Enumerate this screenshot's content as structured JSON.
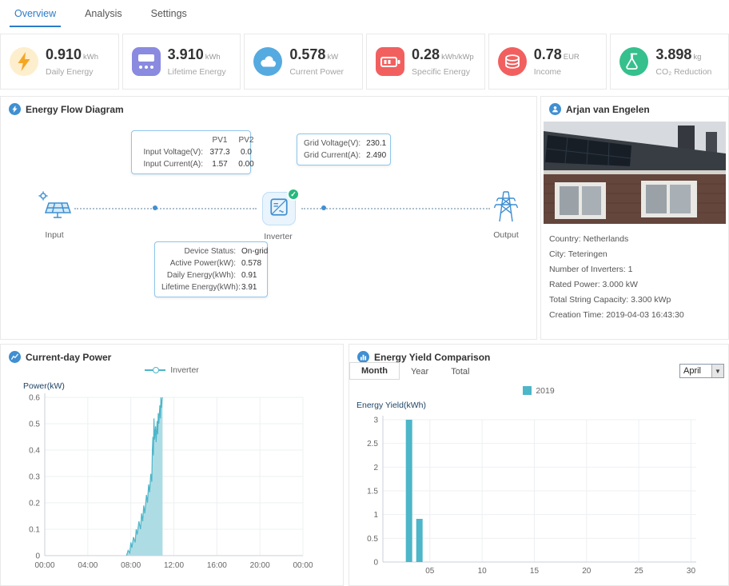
{
  "nav": {
    "tabs": [
      {
        "label": "Overview",
        "active": true
      },
      {
        "label": "Analysis",
        "active": false
      },
      {
        "label": "Settings",
        "active": false
      }
    ]
  },
  "kpis": [
    {
      "icon": "lightning-icon",
      "value": "0.910",
      "unit": "kWh",
      "label": "Daily Energy"
    },
    {
      "icon": "meter-icon",
      "value": "3.910",
      "unit": "kWh",
      "label": "Lifetime Energy"
    },
    {
      "icon": "cloud-icon",
      "value": "0.578",
      "unit": "kW",
      "label": "Current Power"
    },
    {
      "icon": "battery-icon",
      "value": "0.28",
      "unit": "kWh/kWp",
      "label": "Specific Energy"
    },
    {
      "icon": "coins-icon",
      "value": "0.78",
      "unit": "EUR",
      "label": "Income"
    },
    {
      "icon": "flask-icon",
      "value": "3.898",
      "unit": "kg",
      "label": "CO₂ Reduction"
    }
  ],
  "flow": {
    "title": "Energy Flow Diagram",
    "nodes": {
      "input": "Input",
      "inverter": "Inverter",
      "output": "Output"
    },
    "pv_tooltip": {
      "col1": "PV1",
      "col2": "PV2",
      "rows": [
        {
          "label": "Input Voltage(V):",
          "v1": "377.3",
          "v2": "0.0"
        },
        {
          "label": "Input Current(A):",
          "v1": "1.57",
          "v2": "0.00"
        }
      ]
    },
    "grid_tooltip": {
      "rows": [
        {
          "label": "Grid Voltage(V):",
          "value": "230.1"
        },
        {
          "label": "Grid Current(A):",
          "value": "2.490"
        }
      ]
    },
    "device_tooltip": {
      "rows": [
        {
          "label": "Device Status:",
          "value": "On-grid"
        },
        {
          "label": "Active Power(kW):",
          "value": "0.578"
        },
        {
          "label": "Daily Energy(kWh):",
          "value": "0.91"
        },
        {
          "label": "Lifetime Energy(kWh):",
          "value": "3.91"
        }
      ]
    }
  },
  "plant": {
    "title": "Arjan van Engelen",
    "details": [
      "Country: Netherlands",
      "City: Teteringen",
      "Number of Inverters: 1",
      "Rated Power: 3.000 kW",
      "Total String Capacity: 3.300 kWp",
      "Creation Time: 2019-04-03 16:43:30"
    ]
  },
  "power_panel": {
    "title": "Current-day Power",
    "legend": "Inverter",
    "ylabel": "Power(kW)"
  },
  "yield_panel": {
    "title": "Energy Yield Comparison",
    "tabs": [
      "Month",
      "Year",
      "Total"
    ],
    "active_tab": "Month",
    "dropdown": "April",
    "legend": "2019",
    "ylabel": "Energy Yield(kWh)"
  },
  "chart_data": [
    {
      "type": "area",
      "title": "Current-day Power",
      "ylabel": "Power(kW)",
      "xlim": [
        0,
        24
      ],
      "ylim": [
        0,
        0.6
      ],
      "xticks": {
        "positions": [
          0,
          4,
          8,
          12,
          16,
          20,
          24
        ],
        "labels": [
          "00:00",
          "04:00",
          "08:00",
          "12:00",
          "16:00",
          "20:00",
          "00:00"
        ]
      },
      "yticks": [
        0,
        0.1,
        0.2,
        0.3,
        0.4,
        0.5,
        0.6
      ],
      "grid": true,
      "legend_position": "top",
      "series": [
        {
          "name": "Inverter",
          "color": "#4db6c9",
          "fill": "#a5d8e2",
          "points": [
            [
              7.6,
              0
            ],
            [
              7.75,
              0.02
            ],
            [
              7.9,
              0.01
            ],
            [
              8.0,
              0.05
            ],
            [
              8.1,
              0.03
            ],
            [
              8.25,
              0.07
            ],
            [
              8.4,
              0.05
            ],
            [
              8.5,
              0.1
            ],
            [
              8.6,
              0.08
            ],
            [
              8.75,
              0.13
            ],
            [
              8.9,
              0.1
            ],
            [
              9.0,
              0.16
            ],
            [
              9.1,
              0.13
            ],
            [
              9.2,
              0.19
            ],
            [
              9.3,
              0.16
            ],
            [
              9.45,
              0.23
            ],
            [
              9.55,
              0.2
            ],
            [
              9.65,
              0.27
            ],
            [
              9.75,
              0.24
            ],
            [
              9.85,
              0.31
            ],
            [
              9.95,
              0.28
            ],
            [
              10.0,
              0.4
            ],
            [
              10.05,
              0.45
            ],
            [
              10.1,
              0.38
            ],
            [
              10.15,
              0.52
            ],
            [
              10.2,
              0.44
            ],
            [
              10.3,
              0.49
            ],
            [
              10.35,
              0.43
            ],
            [
              10.45,
              0.51
            ],
            [
              10.5,
              0.46
            ],
            [
              10.55,
              0.54
            ],
            [
              10.6,
              0.5
            ],
            [
              10.7,
              0.57
            ],
            [
              10.75,
              0.52
            ],
            [
              10.8,
              0.6
            ],
            [
              10.85,
              0.56
            ],
            [
              10.9,
              0.59
            ],
            [
              10.95,
              0.6
            ]
          ]
        }
      ]
    },
    {
      "type": "bar",
      "title": "Energy Yield Comparison",
      "ylabel": "Energy Yield(kWh)",
      "categories": [
        1,
        2,
        3,
        4,
        5,
        6,
        7,
        8,
        9,
        10,
        11,
        12,
        13,
        14,
        15,
        16,
        17,
        18,
        19,
        20,
        21,
        22,
        23,
        24,
        25,
        26,
        27,
        28,
        29,
        30
      ],
      "ylim": [
        0,
        3
      ],
      "yticks": [
        0,
        0.5,
        1,
        1.5,
        2,
        2.5,
        3
      ],
      "xticks": {
        "positions": [
          5,
          10,
          15,
          20,
          25,
          30
        ],
        "labels": [
          "05",
          "10",
          "15",
          "20",
          "25",
          "30"
        ]
      },
      "grid": true,
      "legend_position": "top",
      "series": [
        {
          "name": "2019",
          "color": "#4db6c9",
          "values": [
            0,
            0,
            3.0,
            0.91,
            0,
            0,
            0,
            0,
            0,
            0,
            0,
            0,
            0,
            0,
            0,
            0,
            0,
            0,
            0,
            0,
            0,
            0,
            0,
            0,
            0,
            0,
            0,
            0,
            0,
            0
          ]
        }
      ]
    }
  ],
  "colors": {
    "accent_blue": "#2b7cc9",
    "icon_blue": "#3f8fd2",
    "chart_teal": "#4db6c9",
    "chart_teal_fill": "#a5d8e2",
    "status_green": "#27b87e",
    "kpi_orange": "#f5a623",
    "kpi_purple": "#8a8ae0",
    "kpi_blue": "#55aae0",
    "kpi_red": "#f1605f",
    "kpi_green": "#35c08e"
  }
}
